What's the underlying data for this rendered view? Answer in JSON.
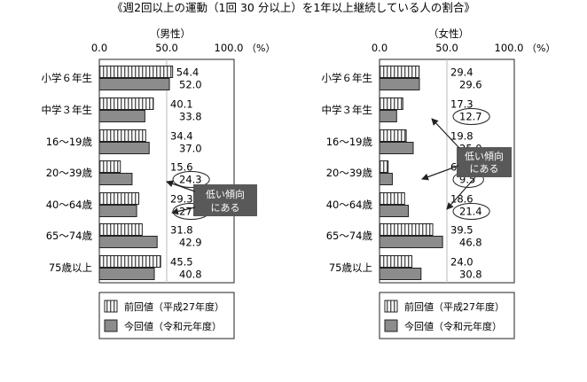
{
  "title": "《週2回以上の運動（1回 30 分以上）を1年以上継続している人の割合》",
  "unit": "（%）",
  "callout": {
    "line1": "低い傾向",
    "line2": "にある"
  },
  "legend": {
    "prev": "前回値（平成27年度）",
    "curr": "今回値（令和元年度）"
  },
  "colors": {
    "prev_fill": "#ffffff",
    "curr_fill": "#8c8c8c",
    "hatch": "#555555",
    "callout_bg": "#595959"
  },
  "chart_data": [
    {
      "type": "bar",
      "orientation": "horizontal",
      "title": "（男性）",
      "xlim": [
        0,
        100
      ],
      "xticks": [
        "0.0",
        "50.0",
        "100.0"
      ],
      "categories": [
        "小学６年生",
        "中学３年生",
        "16～19歳",
        "20～39歳",
        "40～64歳",
        "65～74歳",
        "75歳以上"
      ],
      "series": [
        {
          "name": "前回値（平成27年度）",
          "values": [
            54.4,
            40.1,
            34.4,
            15.6,
            29.3,
            31.8,
            45.5
          ]
        },
        {
          "name": "今回値（令和元年度）",
          "values": [
            52.0,
            33.8,
            37.0,
            24.3,
            27.7,
            42.9,
            40.8
          ]
        }
      ],
      "circled": [
        "24.3",
        "27.7"
      ]
    },
    {
      "type": "bar",
      "orientation": "horizontal",
      "title": "（女性）",
      "xlim": [
        0,
        100
      ],
      "xticks": [
        "0.0",
        "50.0",
        "100.0"
      ],
      "categories": [
        "小学６年生",
        "中学３年生",
        "16～19歳",
        "20～39歳",
        "40～64歳",
        "65～74歳",
        "75歳以上"
      ],
      "series": [
        {
          "name": "前回値（平成27年度）",
          "values": [
            29.4,
            17.3,
            19.8,
            6.4,
            18.6,
            39.5,
            24.0
          ]
        },
        {
          "name": "今回値（令和元年度）",
          "values": [
            29.6,
            12.7,
            25.0,
            9.5,
            21.4,
            46.8,
            30.8
          ]
        }
      ],
      "circled": [
        "12.7",
        "9.5",
        "21.4"
      ]
    }
  ]
}
